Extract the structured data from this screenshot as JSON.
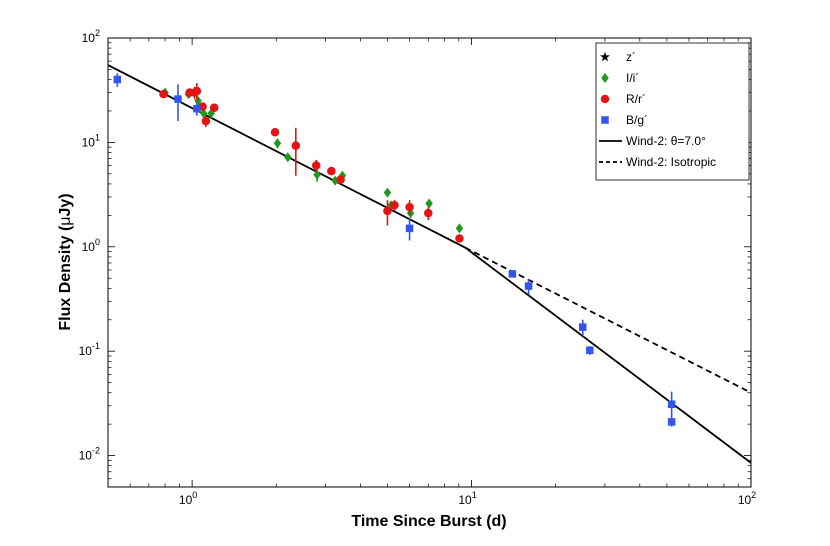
{
  "chart_data": {
    "type": "scatter",
    "xscale": "log",
    "yscale": "log",
    "xlim": [
      0.5,
      100
    ],
    "ylim": [
      0.005,
      100
    ],
    "xlabel": "Time Since Burst (d)",
    "ylabel_parts": [
      "Flux Density (",
      "μ",
      "Jy)"
    ],
    "x_ticks": [
      {
        "value": 1,
        "base": "10",
        "exp": "0"
      },
      {
        "value": 10,
        "base": "10",
        "exp": "1"
      },
      {
        "value": 100,
        "base": "10",
        "exp": "2"
      }
    ],
    "y_ticks": [
      {
        "value": 0.01,
        "base": "10",
        "exp": "-2"
      },
      {
        "value": 0.1,
        "base": "10",
        "exp": "-1"
      },
      {
        "value": 1,
        "base": "10",
        "exp": "0"
      },
      {
        "value": 10,
        "base": "10",
        "exp": "1"
      },
      {
        "value": 100,
        "base": "10",
        "exp": "2"
      }
    ],
    "legend_position": "top-right",
    "series": [
      {
        "name": "z´",
        "marker": "star",
        "color": "#000000",
        "points": []
      },
      {
        "name": "I/i´",
        "marker": "diamond",
        "color": "#1f9a1f",
        "points": [
          {
            "x": 0.8,
            "y": 30,
            "err": 2
          },
          {
            "x": 0.97,
            "y": 29,
            "err": 2
          },
          {
            "x": 1.05,
            "y": 25,
            "err": 2
          },
          {
            "x": 1.1,
            "y": 19,
            "err": 2
          },
          {
            "x": 1.17,
            "y": 19,
            "err": 2
          },
          {
            "x": 2.02,
            "y": 9.8,
            "err": 1
          },
          {
            "x": 2.2,
            "y": 7.2,
            "err": 0.6
          },
          {
            "x": 2.35,
            "y": 9.2,
            "err": 1
          },
          {
            "x": 2.8,
            "y": 4.9,
            "err": 0.7
          },
          {
            "x": 3.25,
            "y": 4.3,
            "err": 0.3
          },
          {
            "x": 3.45,
            "y": 4.8,
            "err": 0.3
          },
          {
            "x": 5.0,
            "y": 3.3,
            "err": 0.3
          },
          {
            "x": 5.15,
            "y": 2.5,
            "err": 0.2
          },
          {
            "x": 6.05,
            "y": 2.1,
            "err": 0.2
          },
          {
            "x": 7.05,
            "y": 2.6,
            "err": 0.2
          },
          {
            "x": 9.05,
            "y": 1.5,
            "err": 0.1
          }
        ]
      },
      {
        "name": "R/r´",
        "marker": "circle",
        "color": "#e21414",
        "points": [
          {
            "x": 0.79,
            "y": 29,
            "err": 2
          },
          {
            "x": 0.98,
            "y": 30,
            "err": 3
          },
          {
            "x": 1.02,
            "y": 30,
            "err": 4
          },
          {
            "x": 1.04,
            "y": 31,
            "err": 6
          },
          {
            "x": 1.09,
            "y": 22,
            "err": 2
          },
          {
            "x": 1.12,
            "y": 16,
            "err": 2
          },
          {
            "x": 1.2,
            "y": 21.5,
            "err": 2
          },
          {
            "x": 1.98,
            "y": 12.5,
            "err": 1
          },
          {
            "x": 2.35,
            "y": 9.3,
            "err": 4.5
          },
          {
            "x": 2.78,
            "y": 6.0,
            "err": 0.8
          },
          {
            "x": 3.15,
            "y": 5.3,
            "err": 0.4
          },
          {
            "x": 3.4,
            "y": 4.4,
            "err": 0.4
          },
          {
            "x": 5.0,
            "y": 2.2,
            "err": 0.6
          },
          {
            "x": 5.3,
            "y": 2.5,
            "err": 0.3
          },
          {
            "x": 6.0,
            "y": 2.4,
            "err": 0.4
          },
          {
            "x": 7.0,
            "y": 2.1,
            "err": 0.3
          },
          {
            "x": 9.05,
            "y": 1.2,
            "err": 0.1
          }
        ]
      },
      {
        "name": "B/g´",
        "marker": "square",
        "color": "#3355ee",
        "points": [
          {
            "x": 0.54,
            "y": 40,
            "err": 6
          },
          {
            "x": 0.89,
            "y": 26,
            "err": 10
          },
          {
            "x": 1.04,
            "y": 21,
            "err": 3
          },
          {
            "x": 6.0,
            "y": 1.5,
            "err": 0.35
          },
          {
            "x": 14.0,
            "y": 0.55,
            "err": 0.04
          },
          {
            "x": 16.0,
            "y": 0.42,
            "err": 0.07
          },
          {
            "x": 25.0,
            "y": 0.17,
            "err": 0.03
          },
          {
            "x": 26.5,
            "y": 0.102,
            "err": 0.01
          },
          {
            "x": 52.0,
            "y": 0.031,
            "err": 0.01
          },
          {
            "x": 52.0,
            "y": 0.021,
            "err": 0.002
          }
        ]
      }
    ],
    "models": [
      {
        "name_prefix": "Wind-2: ",
        "name_symbol": "θ",
        "name_suffix": "=7.0°",
        "style": "solid",
        "points": [
          [
            0.5,
            55
          ],
          [
            9.5,
            0.98
          ],
          [
            100,
            0.0085
          ]
        ]
      },
      {
        "name_prefix": "Wind-2: Isotropic",
        "name_symbol": "",
        "name_suffix": "",
        "style": "dashed",
        "points": [
          [
            9.5,
            0.98
          ],
          [
            100,
            0.04
          ]
        ]
      }
    ]
  }
}
